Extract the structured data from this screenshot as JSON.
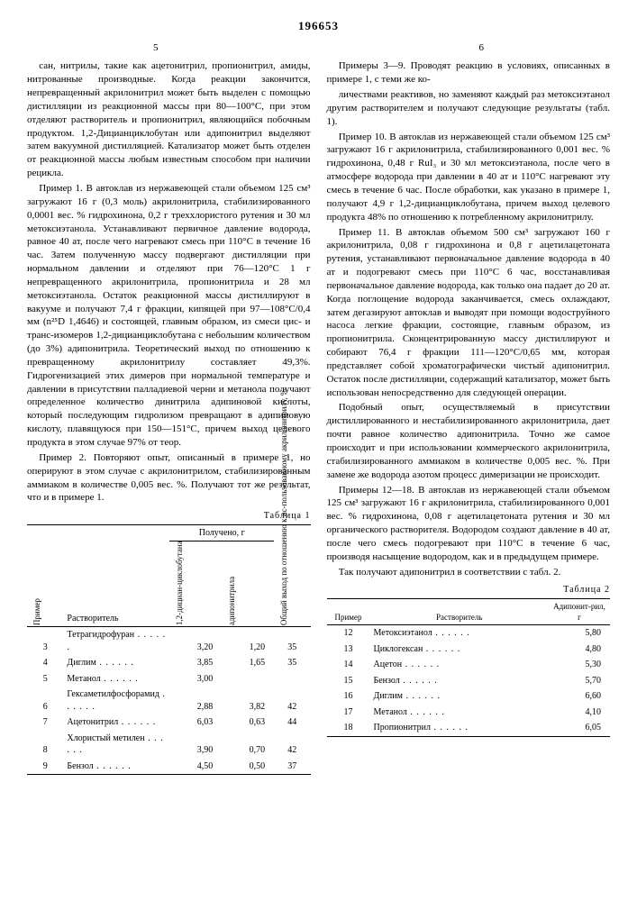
{
  "doc_number": "196653",
  "page_left": "5",
  "page_right": "6",
  "col1": {
    "p1": "сан, нитрилы, такие как ацетонитрил, пропионитрил, амиды, нитрованные производные. Когда реакции закончится, непревращенный акрилонитрил может быть выделен с помощью дистилляции из реакционной массы при 80—100°C, при этом отделяют растворитель и пропионитрил, являющийся побочным продуктом. 1,2-Дицианциклобутан или адипонитрил выделяют затем вакуумной дистилляцией. Катализатор может быть отделен от реакционной массы любым известным способом при наличии рецикла.",
    "p2": "Пример 1. В автоклав из нержавеющей стали объемом 125 см³ загружают 16 г (0,3 моль) акрилонитрила, стабилизированного 0,0001 вес. % гидрохинона, 0,2 г треххлористого рутения и 30 мл метоксиэтанола. Устанавливают первичное давление водорода, равное 40 ат, после чего нагревают смесь при 110°C в течение 16 час. Затем полученную массу подвергают дистилляции при нормальном давлении и отделяют при 76—120°C 1 г непревращенного акрилонитрила, пропионитрила и 28 мл метоксиэтанола. Остаток реакционной массы дистиллируют в вакууме и получают 7,4 г фракции, кипящей при 97—108°C/0,4 мм (n²⁵D 1,4646) и состоящей, главным образом, из смеси цис- и транс-изомеров 1,2-дицианциклобутана с небольшим количеством (до 3%) адипонитрила. Теоретический выход по отношению к превращенному акрилонитрилу составляет 49,3%. Гидрогенизацией этих димеров при нормальной температуре и давлении в присутствии палладиевой черни и метанола получают определенное количество динитрила адипиновой кислоты, который последующим гидролизом превращают в адипиновую кислоту, плавящуюся при 150—151°C, причем выход целевого продукта в этом случае 97% от теор.",
    "p3": "Пример 2. Повторяют опыт, описанный в примере 1, но оперируют в этом случае с акрилонитрилом, стабилизированным аммиаком в количестве 0,005 вес. %. Получают тот же результат, что и в примере 1.",
    "p4": "Примеры 3—9. Проводят реакцию в условиях, описанных в примере 1, с теми же ко-"
  },
  "col2": {
    "p1": "личествами реактивов, но заменяют каждый раз метоксиэтанол другим растворителем и получают следующие результаты (табл. 1).",
    "p2": "Пример 10. В автоклав из нержавеющей стали объемом 125 см³ загружают 16 г акрилонитрила, стабилизированного 0,001 вес. % гидрохинона, 0,48 г RuI₃ и 30 мл метоксиэтанола, после чего в атмосфере водорода при давлении в 40 ат и 110°C нагревают эту смесь в течение 6 час. После обработки, как указано в примере 1, получают 4,9 г 1,2-дицианциклобутана, причем выход целевого продукта 48% по отношению к потребленному акрилонитрилу.",
    "p3": "Пример 11. В автоклав объемом 500 см³ загружают 160 г акрилонитрила, 0,08 г гидрохинона и 0,8 г ацетилацетоната рутения, устанавливают первоначальное давление водорода в 40 ат и подогревают смесь при 110°C 6 час, восстанавливая первоначальное давление водорода, как только она падает до 20 ат. Когда поглощение водорода заканчивается, смесь охлаждают, затем дегазируют автоклав и выводят при помощи водоструйного насоса легкие фракции, состоящие, главным образом, из пропионитрила. Сконцентрированную массу дистиллируют и собирают 76,4 г фракции 111—120°C/0,65 мм, которая представляет собой хроматографически чистый адипонитрил. Остаток после дистилляции, содержащий катализатор, может быть использован непосредственно для следующей операции.",
    "p4": "Подобный опыт, осуществляемый в присутствии дистиллированного и нестабилизированного акрилонитрила, дает почти равное количество адипонитрила. Точно же самое происходит и при использовании коммерческого акрилонитрила, стабилизированного аммиаком в количестве 0,005 вес. %. При замене же водорода азотом процесс димеризации не происходит.",
    "p5": "Примеры 12—18. В автоклав из нержавеющей стали объемом 125 см³ загружают 16 г акрилонитрила, стабилизированного 0,001 вес. % гидрохинона, 0,08 г ацетилацетоната рутения и 30 мл органического растворителя. Водородом создают давление в 40 ат, после чего смесь подогревают при 110°C в течение 6 час, производя насыщение водородом, как и в предыдущем примере.",
    "p6": "Так получают адипонитрил в соответствии с табл. 2."
  },
  "table1": {
    "title": "Таблица 1",
    "headers": {
      "c1": "Пример",
      "c2": "Растворитель",
      "c3": "Получено, г",
      "c3a": "1,2-дициан-циклобутана",
      "c3b": "адипонитрила",
      "c4": "Общий выход по отношению к ис-пользованному акрилонитрилу, %"
    },
    "rows": [
      {
        "n": "3",
        "s": "Тетрагидрофуран",
        "a": "3,20",
        "b": "1,20",
        "y": "35"
      },
      {
        "n": "4",
        "s": "Диглим",
        "a": "3,85",
        "b": "1,65",
        "y": "35"
      },
      {
        "n": "5",
        "s": "Метанол",
        "a": "3,00",
        "b": "",
        "y": ""
      },
      {
        "n": "6",
        "s": "Гексаметилфосфорамид",
        "a": "2,88",
        "b": "3,82",
        "y": "42"
      },
      {
        "n": "7",
        "s": "Ацетонитрил",
        "a": "6,03",
        "b": "0,63",
        "y": "44"
      },
      {
        "n": "8",
        "s": "Хлористый метилен",
        "a": "3,90",
        "b": "0,70",
        "y": "42"
      },
      {
        "n": "9",
        "s": "Бензол",
        "a": "4,50",
        "b": "0,50",
        "y": "37"
      }
    ]
  },
  "table2": {
    "title": "Таблица 2",
    "headers": {
      "c1": "Пример",
      "c2": "Растворитель",
      "c3": "Адипонит-рил, г"
    },
    "rows": [
      {
        "n": "12",
        "s": "Метоксиэтанол",
        "v": "5,80"
      },
      {
        "n": "13",
        "s": "Циклогексан",
        "v": "4,80"
      },
      {
        "n": "14",
        "s": "Ацетон",
        "v": "5,30"
      },
      {
        "n": "15",
        "s": "Бензол",
        "v": "5,70"
      },
      {
        "n": "16",
        "s": "Диглим",
        "v": "6,60"
      },
      {
        "n": "17",
        "s": "Метанол",
        "v": "4,10"
      },
      {
        "n": "18",
        "s": "Пропионитрил",
        "v": "6,05"
      }
    ]
  }
}
